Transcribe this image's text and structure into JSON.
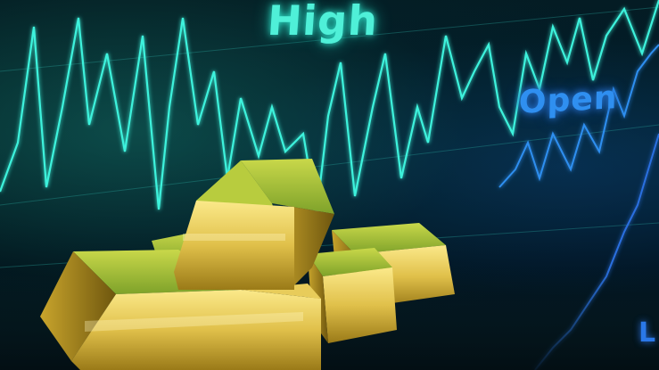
{
  "labels": {
    "high": "High",
    "open": "Open",
    "low": "L"
  },
  "colors": {
    "line_teal": "#3ef2dc",
    "line_blue": "#2f8ff0",
    "gold_light": "#f6e27a",
    "gold_mid": "#d4b236",
    "gold_dark": "#8a6d12",
    "gold_green_face": "#a8c236"
  }
}
